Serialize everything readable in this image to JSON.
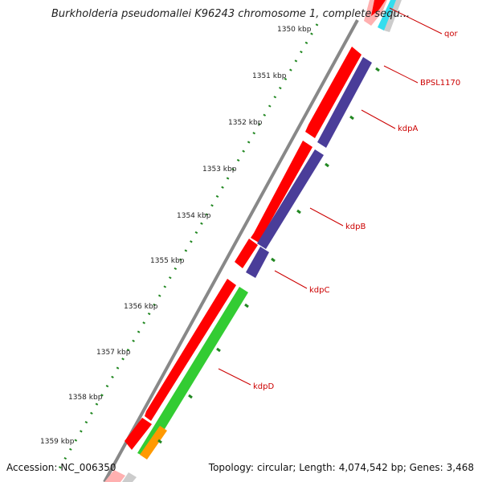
{
  "title": "Burkholderia pseudomallei K96243 chromosome 1, complete sequ...",
  "accession": {
    "label": "Accession:",
    "value": "NC_006350"
  },
  "summary": {
    "topology_label": "Topology:",
    "topology": "circular",
    "length_label": "Length:",
    "length": "4,074,542 bp",
    "genes_label": "Genes:",
    "genes": "3,468"
  },
  "ruler": {
    "unit": "kbp",
    "ticks": [
      "1350 kbp",
      "1351 kbp",
      "1352 kbp",
      "1353 kbp",
      "1354 kbp",
      "1355 kbp",
      "1356 kbp",
      "1357 kbp",
      "1358 kbp",
      "1359 kbp"
    ]
  },
  "genes": [
    {
      "name": "qor"
    },
    {
      "name": "BPSL1170"
    },
    {
      "name": "kdpA"
    },
    {
      "name": "kdpB"
    },
    {
      "name": "kdpC"
    },
    {
      "name": "kdpD"
    }
  ],
  "colors": {
    "cds_red": "#ff0000",
    "gene_purple": "#4a3d99",
    "green": "#33cc33",
    "orange": "#ff9900",
    "cyan": "#33ddee",
    "pink": "#ffb0b0",
    "backbone": "#888888",
    "tick_green": "#228822",
    "label_red": "#cc0000"
  }
}
